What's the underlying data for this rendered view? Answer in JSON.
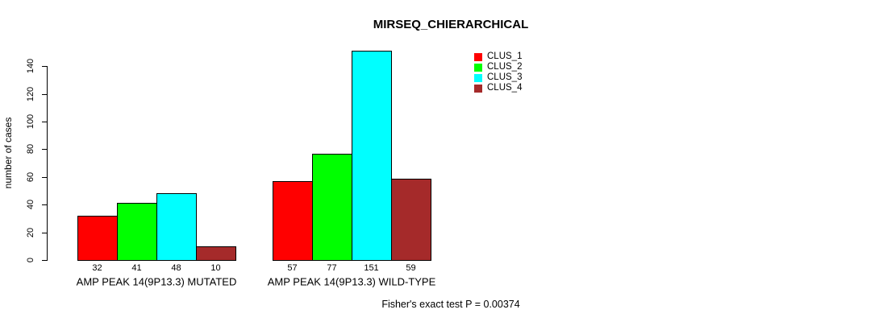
{
  "chart_data": {
    "type": "bar",
    "title": "MIRSEQ_CHIERARCHICAL",
    "ylabel": "number of cases",
    "xlabel": "",
    "ylim": [
      0,
      140
    ],
    "yticks": [
      0,
      20,
      40,
      60,
      80,
      100,
      120,
      140
    ],
    "grid": false,
    "legend_position": "top-right-outside",
    "categories": [
      "AMP PEAK 14(9P13.3) MUTATED",
      "AMP PEAK 14(9P13.3) WILD-TYPE"
    ],
    "series": [
      {
        "name": "CLUS_1",
        "color": "#ff0000",
        "values": [
          32,
          57
        ]
      },
      {
        "name": "CLUS_2",
        "color": "#00ff00",
        "values": [
          41,
          77
        ]
      },
      {
        "name": "CLUS_3",
        "color": "#00ffff",
        "values": [
          48,
          151
        ]
      },
      {
        "name": "CLUS_4",
        "color": "#a52a2a",
        "values": [
          10,
          59
        ]
      }
    ],
    "bar_value_labels": [
      [
        32,
        41,
        48,
        10
      ],
      [
        57,
        77,
        151,
        59
      ]
    ],
    "annotation": "Fisher's exact test P = 0.00374"
  }
}
